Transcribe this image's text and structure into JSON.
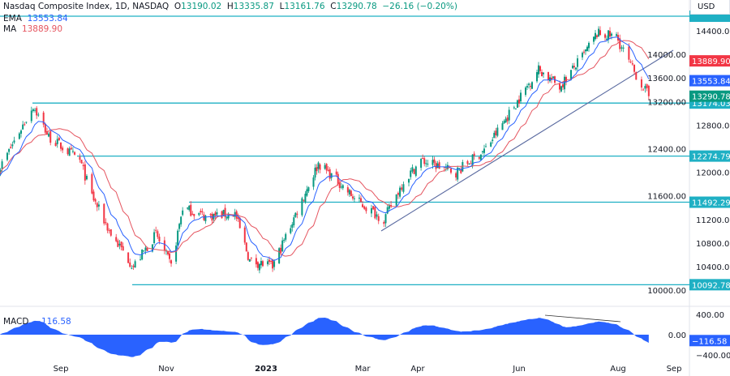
{
  "header": {
    "symbol": "Nasdaq Composite Index, 1D, NASDAQ",
    "open_label": "O",
    "open": "13190.02",
    "high_label": "H",
    "high": "13335.87",
    "low_label": "L",
    "low": "13161.76",
    "close_label": "C",
    "close": "13290.78",
    "change": "−26.16 (−0.20%)"
  },
  "indicators": {
    "ema_label": "EMA",
    "ema_value": "13553.84",
    "ma_label": "MA",
    "ma_value": "13889.90",
    "macd_label": "MACD",
    "macd_value": "−116.58"
  },
  "currency": "USD",
  "colors": {
    "up": "#089981",
    "down": "#f23645",
    "ema": "#2962ff",
    "ma": "#e5545f",
    "level": "#1fb0c4",
    "trend": "#5a6aa0",
    "macd": "#2962ff"
  },
  "chart_data": {
    "type": "candlestick",
    "title": "Nasdaq Composite Index, 1D, NASDAQ",
    "ylim": [
      9950,
      14700
    ],
    "price_ticks": [
      "14400.00",
      "14000.00",
      "13600.00",
      "13200.00",
      "12800.00",
      "12400.00",
      "12000.00",
      "11600.00",
      "11200.00",
      "10800.00",
      "10400.00",
      "10000.00"
    ],
    "x_ticks": [
      "Sep",
      "Nov",
      "2023",
      "Mar",
      "Apr",
      "Jun",
      "Aug",
      "Sep"
    ],
    "approx_closes": [
      [
        "2022-07-27",
        12030
      ],
      [
        "2022-08-16",
        13130
      ],
      [
        "2022-08-25",
        12600
      ],
      [
        "2022-09-12",
        12200
      ],
      [
        "2022-09-19",
        11600
      ],
      [
        "2022-09-30",
        10950
      ],
      [
        "2022-10-13",
        10400
      ],
      [
        "2022-10-26",
        10950
      ],
      [
        "2022-11-04",
        10400
      ],
      [
        "2022-11-11",
        11400
      ],
      [
        "2022-11-25",
        11250
      ],
      [
        "2022-12-13",
        11300
      ],
      [
        "2022-12-22",
        10500
      ],
      [
        "2023-01-05",
        10400
      ],
      [
        "2023-01-20",
        11350
      ],
      [
        "2023-02-02",
        12150
      ],
      [
        "2023-02-14",
        11850
      ],
      [
        "2023-02-24",
        11550
      ],
      [
        "2023-03-13",
        11200
      ],
      [
        "2023-03-24",
        11850
      ],
      [
        "2023-04-03",
        12200
      ],
      [
        "2023-04-24",
        12000
      ],
      [
        "2023-05-12",
        12400
      ],
      [
        "2023-06-01",
        13250
      ],
      [
        "2023-06-13",
        13750
      ],
      [
        "2023-06-26",
        13450
      ],
      [
        "2023-07-11",
        14000
      ],
      [
        "2023-07-19",
        14350
      ],
      [
        "2023-07-31",
        14300
      ],
      [
        "2023-08-09",
        13750
      ],
      [
        "2023-08-18",
        13290.78
      ]
    ],
    "levels": [
      {
        "value": 14647,
        "label": ""
      },
      {
        "value": 13174.03,
        "label": "13174.03"
      },
      {
        "value": 12274.79,
        "label": "12274.79"
      },
      {
        "value": 11492.29,
        "label": "11492.29"
      },
      {
        "value": 10092.78,
        "label": "10092.78"
      }
    ],
    "price_badges": [
      {
        "value": 13889.9,
        "label": "13889.90",
        "color": "#f23645"
      },
      {
        "value": 13553.84,
        "label": "13553.84",
        "color": "#2962ff"
      },
      {
        "value": 13290.78,
        "label": "13290.78",
        "color": "#089981"
      }
    ],
    "macd": {
      "ticks": [
        "400.00",
        "0.00",
        "−400.00"
      ],
      "ylim": [
        -650,
        620
      ],
      "last": "−116.58"
    }
  }
}
